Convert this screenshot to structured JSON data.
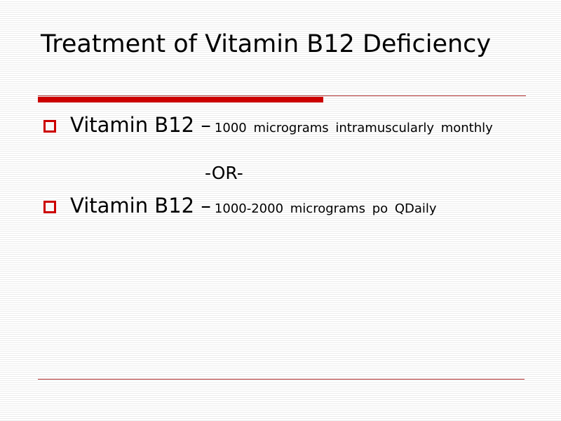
{
  "slide": {
    "title": "Treatment of Vitamin B12 Deficiency",
    "colors": {
      "accent": "#cc0000",
      "rule": "#b03030",
      "text": "#000000"
    },
    "bullets": [
      {
        "icon": "hollow-square-bullet-icon",
        "lead": "Vitamin B12 –",
        "detail": "1000 micrograms intramuscularly monthly"
      },
      {
        "icon": "hollow-square-bullet-icon",
        "lead": "Vitamin B12 –",
        "detail": "1000-2000 micrograms po QDaily"
      }
    ],
    "separator": "-OR-"
  }
}
